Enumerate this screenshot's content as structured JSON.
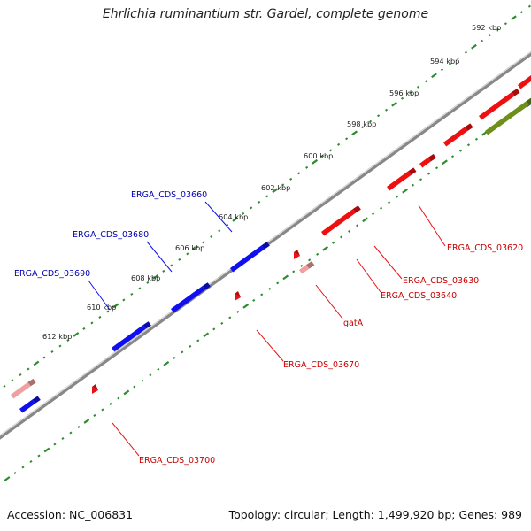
{
  "title": "Ehrlichia ruminantium str. Gardel, complete genome",
  "footer": {
    "accession": "Accession: NC_006831",
    "stats": "Topology: circular; Length: 1,499,920 bp; Genes: 989"
  },
  "colors": {
    "forward_gene": "#1010ee",
    "reverse_gene": "#ee1010",
    "light_gene": "#f0a0a0",
    "olive_gene": "#6e8f1a",
    "backbone": "#888888",
    "tick": "#2e8b2e"
  },
  "scale": {
    "unit": "kbp",
    "labels": [
      "592 kbp",
      "594 kbp",
      "596 kbp",
      "598 kbp",
      "600 kbp",
      "602 kbp",
      "604 kbp",
      "606 kbp",
      "608 kbp",
      "610 kbp",
      "612 kbp"
    ]
  },
  "genes": {
    "forward_labels": [
      "ERGA_CDS_03660",
      "ERGA_CDS_03680",
      "ERGA_CDS_03690"
    ],
    "reverse_labels": [
      "ERGA_CDS_03620",
      "ERGA_CDS_03630",
      "ERGA_CDS_03640",
      "gatA",
      "ERGA_CDS_03670",
      "ERGA_CDS_03700"
    ]
  }
}
